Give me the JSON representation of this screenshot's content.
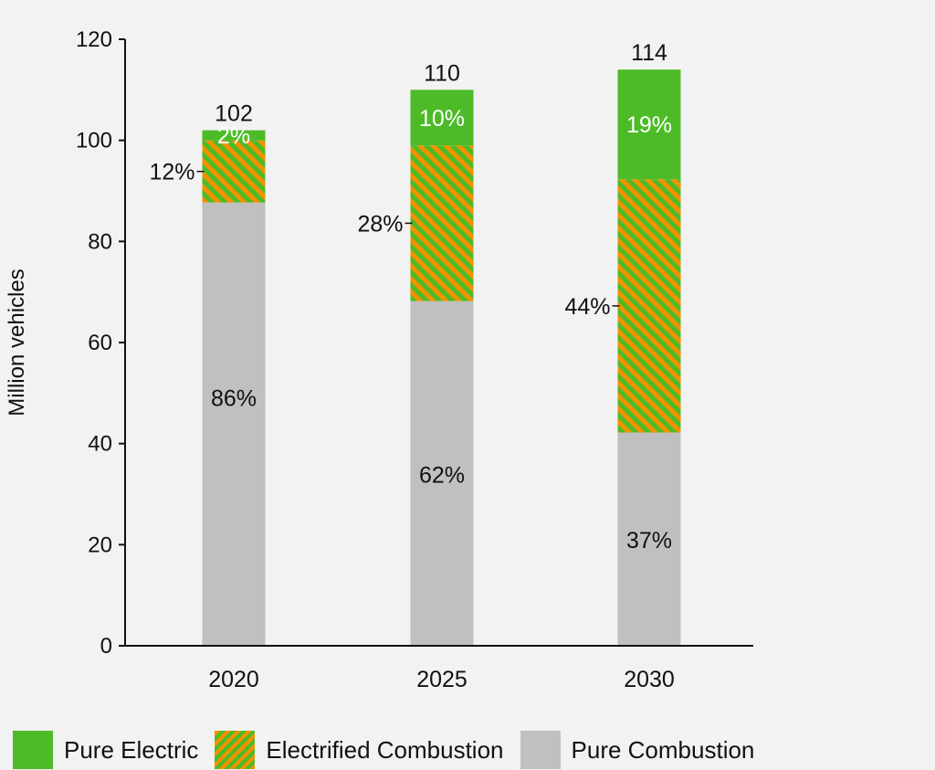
{
  "chart_data": {
    "type": "bar",
    "stacked": true,
    "title": "",
    "xlabel": "",
    "ylabel": "Million vehicles",
    "ylim": [
      0,
      120
    ],
    "yticks": [
      0,
      20,
      40,
      60,
      80,
      100,
      120
    ],
    "grid": false,
    "categories": [
      "2020",
      "2025",
      "2030"
    ],
    "totals": [
      102,
      110,
      114
    ],
    "series": [
      {
        "name": "Pure Combustion",
        "color": "#c0c0c0",
        "pattern": "solid",
        "share_labels": [
          "86%",
          "62%",
          "37%"
        ],
        "values": [
          87.7,
          68.2,
          42.2
        ]
      },
      {
        "name": "Electrified Combustion",
        "color": "#f39200",
        "color2": "#4cbb27",
        "pattern": "diagonal-hatch",
        "share_labels": [
          "12%",
          "28%",
          "44%"
        ],
        "values": [
          12.3,
          30.8,
          50.1
        ]
      },
      {
        "name": "Pure Electric",
        "color": "#4cbb27",
        "pattern": "solid",
        "share_labels": [
          "2%",
          "10%",
          "19%"
        ],
        "values": [
          2.0,
          11.0,
          21.7
        ]
      }
    ],
    "legend_position": "bottom"
  }
}
